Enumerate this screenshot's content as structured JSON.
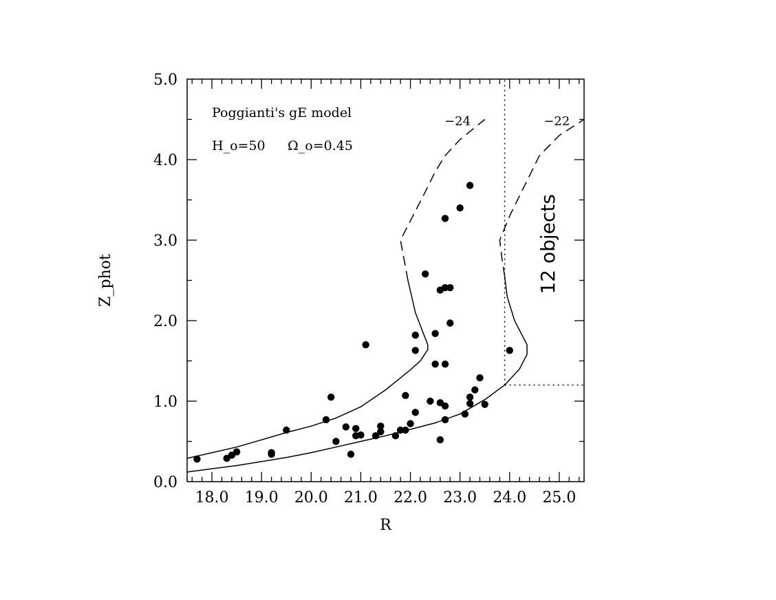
{
  "chart_data": {
    "type": "scatter",
    "xlabel": "R",
    "ylabel": "Z_phot",
    "xlim": [
      17.5,
      25.5
    ],
    "ylim": [
      0.0,
      5.0
    ],
    "x_major_ticks": [
      18.0,
      19.0,
      20.0,
      21.0,
      22.0,
      23.0,
      24.0,
      25.0
    ],
    "x_tick_labels": [
      "18.0",
      "19.0",
      "20.0",
      "21.0",
      "22.0",
      "23.0",
      "24.0",
      "25.0"
    ],
    "y_major_ticks": [
      0.0,
      1.0,
      2.0,
      3.0,
      4.0,
      5.0
    ],
    "y_tick_labels": [
      "0.0",
      "1.0",
      "2.0",
      "3.0",
      "4.0",
      "5.0"
    ],
    "annotations": {
      "model": "Poggianti's gE model",
      "params_h": "H_o=50",
      "params_omega": "Ω_o=0.45",
      "curve_left": "−24",
      "curve_right": "−22",
      "region_label": "12 objects"
    },
    "points": [
      [
        17.7,
        0.28
      ],
      [
        18.3,
        0.29
      ],
      [
        18.4,
        0.33
      ],
      [
        18.5,
        0.37
      ],
      [
        19.2,
        0.34
      ],
      [
        19.2,
        0.36
      ],
      [
        19.5,
        0.64
      ],
      [
        20.3,
        0.77
      ],
      [
        20.4,
        1.05
      ],
      [
        20.5,
        0.5
      ],
      [
        20.7,
        0.68
      ],
      [
        20.8,
        0.34
      ],
      [
        20.9,
        0.57
      ],
      [
        20.9,
        0.66
      ],
      [
        21.0,
        0.58
      ],
      [
        21.1,
        1.7
      ],
      [
        21.3,
        0.57
      ],
      [
        21.4,
        0.62
      ],
      [
        21.4,
        0.69
      ],
      [
        21.7,
        0.57
      ],
      [
        21.8,
        0.64
      ],
      [
        21.9,
        0.64
      ],
      [
        21.9,
        1.07
      ],
      [
        22.0,
        0.72
      ],
      [
        22.1,
        0.86
      ],
      [
        22.1,
        1.63
      ],
      [
        22.1,
        1.82
      ],
      [
        22.3,
        2.58
      ],
      [
        22.4,
        1.0
      ],
      [
        22.5,
        1.46
      ],
      [
        22.5,
        1.84
      ],
      [
        22.6,
        0.52
      ],
      [
        22.6,
        0.98
      ],
      [
        22.6,
        2.38
      ],
      [
        22.7,
        0.77
      ],
      [
        22.7,
        0.94
      ],
      [
        22.7,
        1.46
      ],
      [
        22.7,
        2.41
      ],
      [
        22.7,
        3.27
      ],
      [
        22.8,
        1.97
      ],
      [
        22.8,
        2.41
      ],
      [
        23.0,
        3.4
      ],
      [
        23.1,
        0.84
      ],
      [
        23.2,
        0.97
      ],
      [
        23.2,
        1.05
      ],
      [
        23.2,
        3.68
      ],
      [
        23.3,
        1.14
      ],
      [
        23.4,
        1.29
      ],
      [
        23.5,
        0.96
      ],
      [
        24.0,
        1.63
      ]
    ],
    "lower_curve": [
      [
        17.5,
        0.12
      ],
      [
        18.0,
        0.16
      ],
      [
        18.5,
        0.2
      ],
      [
        19.0,
        0.25
      ],
      [
        19.5,
        0.3
      ],
      [
        20.0,
        0.36
      ],
      [
        20.5,
        0.43
      ],
      [
        21.0,
        0.5
      ],
      [
        21.5,
        0.57
      ],
      [
        22.0,
        0.65
      ],
      [
        22.5,
        0.73
      ],
      [
        23.0,
        0.84
      ],
      [
        23.5,
        1.02
      ],
      [
        23.9,
        1.2
      ],
      [
        24.2,
        1.4
      ],
      [
        24.35,
        1.58
      ],
      [
        24.35,
        1.7
      ],
      [
        24.1,
        2.0
      ],
      [
        23.95,
        2.3
      ],
      [
        23.9,
        2.55
      ]
    ],
    "lower_curve_dashed": [
      [
        23.9,
        2.55
      ],
      [
        23.85,
        2.75
      ],
      [
        23.8,
        3.0
      ],
      [
        24.0,
        3.3
      ],
      [
        24.2,
        3.55
      ],
      [
        24.4,
        3.8
      ],
      [
        24.6,
        4.05
      ],
      [
        25.0,
        4.3
      ],
      [
        25.5,
        4.5
      ]
    ],
    "upper_curve": [
      [
        17.5,
        0.29
      ],
      [
        18.0,
        0.36
      ],
      [
        18.5,
        0.43
      ],
      [
        19.0,
        0.52
      ],
      [
        19.5,
        0.61
      ],
      [
        20.0,
        0.69
      ],
      [
        20.5,
        0.79
      ],
      [
        21.0,
        0.93
      ],
      [
        21.5,
        1.14
      ],
      [
        22.0,
        1.39
      ],
      [
        22.2,
        1.5
      ],
      [
        22.35,
        1.64
      ],
      [
        22.35,
        1.7
      ],
      [
        22.1,
        2.1
      ],
      [
        21.95,
        2.5
      ]
    ],
    "upper_curve_dashed": [
      [
        21.95,
        2.5
      ],
      [
        21.8,
        3.0
      ],
      [
        22.05,
        3.3
      ],
      [
        22.3,
        3.6
      ],
      [
        22.5,
        3.85
      ],
      [
        22.7,
        4.05
      ],
      [
        23.0,
        4.25
      ],
      [
        23.5,
        4.5
      ]
    ],
    "dotted_vertical_x": 23.9,
    "dotted_vertical_range": [
      1.2,
      5.0
    ],
    "dotted_horizontal_y": 1.2,
    "dotted_horizontal_range": [
      23.9,
      25.5
    ]
  }
}
